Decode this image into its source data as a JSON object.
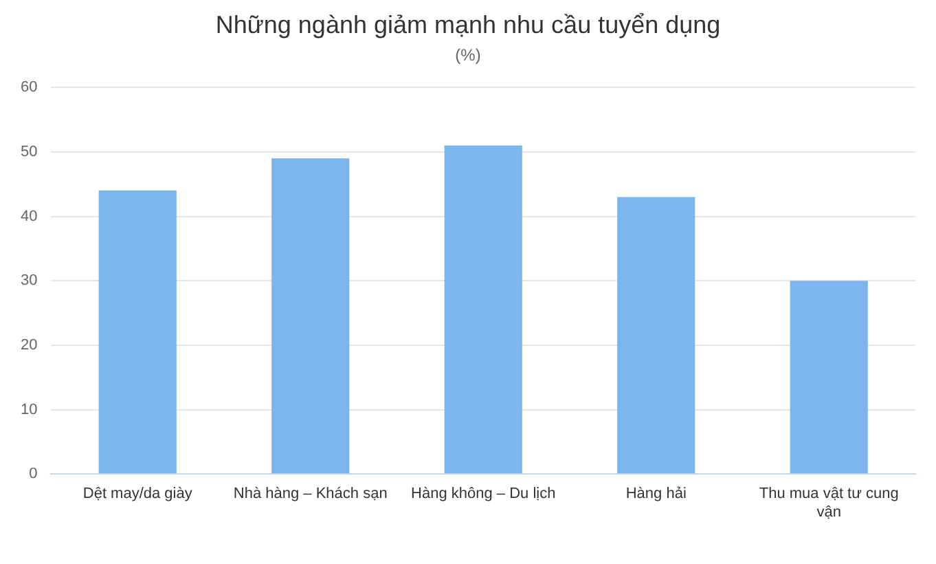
{
  "chart_data": {
    "type": "bar",
    "title": "Những ngành giảm mạnh nhu cầu tuyển dụng",
    "subtitle": "(%)",
    "categories": [
      "Dệt may/da giày",
      "Nhà hàng – Khách sạn",
      "Hàng không – Du lịch",
      "Hàng hải",
      "Thu mua vật tư cung vận"
    ],
    "values": [
      44,
      49,
      51,
      43,
      30
    ],
    "color": "#7cb5ec",
    "ylim": [
      0,
      60
    ],
    "yticks": [
      0,
      10,
      20,
      30,
      40,
      50,
      60
    ],
    "grid": "y",
    "legend": false
  }
}
